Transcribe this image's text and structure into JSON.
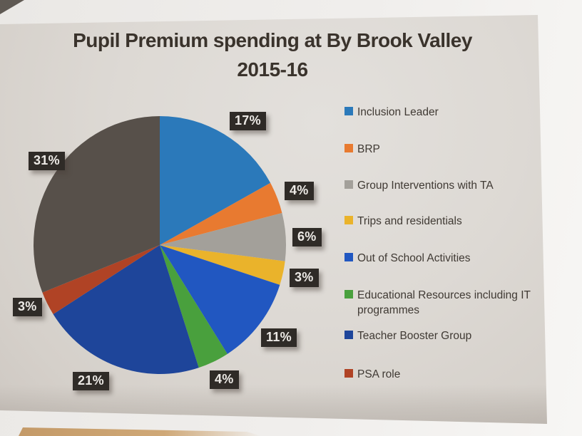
{
  "page": {
    "title_line1": "Pupil Premium spending at By Brook Valley",
    "title_line2": "2015-16"
  },
  "chart_data": {
    "type": "pie",
    "title": "Pupil Premium spending at By Brook Valley 2015-16",
    "start_angle": "12 o'clock, clockwise",
    "legend_position": "right",
    "data_labels": "percent, in dark boxes outside slices",
    "segments": [
      {
        "legend_label": "Inclusion Leader",
        "value": 17,
        "data_label": "17%",
        "color": "#2b79ba"
      },
      {
        "legend_label": "BRP",
        "value": 4,
        "data_label": "4%",
        "color": "#e87a30"
      },
      {
        "legend_label": "Group Interventions with TA",
        "value": 6,
        "data_label": "6%",
        "color": "#a3a09a"
      },
      {
        "legend_label": "Trips and residentials",
        "value": 3,
        "data_label": "3%",
        "color": "#eab32b"
      },
      {
        "legend_label": "Out of School Activities",
        "value": 11,
        "data_label": "11%",
        "color": "#2157c1"
      },
      {
        "legend_label": "Educational Resources including IT programmes",
        "value": 4,
        "data_label": "4%",
        "color": "#49a03d"
      },
      {
        "legend_label": "Teacher Booster Group",
        "value": 21,
        "data_label": "21%",
        "color": "#1e459a"
      },
      {
        "legend_label": "PSA role",
        "value": 3,
        "data_label": "3%",
        "color": "#b04325"
      },
      {
        "legend_label": null,
        "value": 31,
        "data_label": "31%",
        "color": "#57504a"
      }
    ]
  }
}
